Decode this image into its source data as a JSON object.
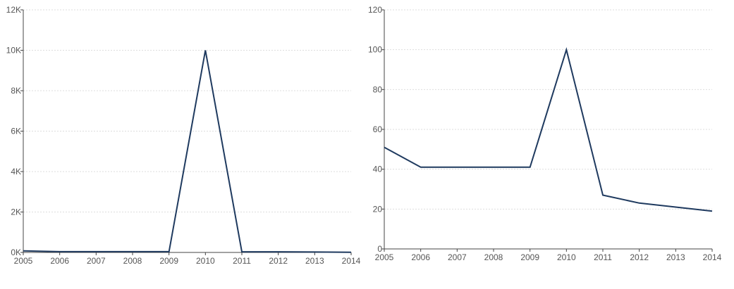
{
  "chart_data": [
    {
      "type": "line",
      "title": "",
      "xlabel": "",
      "ylabel": "",
      "x": [
        "2005",
        "2006",
        "2007",
        "2008",
        "2009",
        "2010",
        "2011",
        "2012",
        "2013",
        "2014"
      ],
      "y_tick_values": [
        0,
        2000,
        4000,
        6000,
        8000,
        10000,
        12000
      ],
      "y_tick_labels": [
        "0K",
        "2K",
        "4K",
        "6K",
        "8K",
        "10K",
        "12K"
      ],
      "ylim": [
        0,
        12000
      ],
      "grid": true,
      "line_color": "#1f3a5f",
      "series": [
        {
          "values": [
            80,
            40,
            40,
            40,
            40,
            10000,
            30,
            30,
            20,
            10
          ]
        }
      ]
    },
    {
      "type": "line",
      "title": "",
      "xlabel": "",
      "ylabel": "",
      "x": [
        "2005",
        "2006",
        "2007",
        "2008",
        "2009",
        "2010",
        "2011",
        "2012",
        "2013",
        "2014"
      ],
      "y_tick_values": [
        0,
        20,
        40,
        60,
        80,
        100,
        120
      ],
      "y_tick_labels": [
        "0",
        "20",
        "40",
        "60",
        "80",
        "100",
        "120"
      ],
      "ylim": [
        0,
        120
      ],
      "grid": true,
      "line_color": "#1f3a5f",
      "series": [
        {
          "values": [
            51,
            41,
            41,
            41,
            41,
            100,
            27,
            23,
            21,
            19
          ]
        }
      ]
    }
  ]
}
